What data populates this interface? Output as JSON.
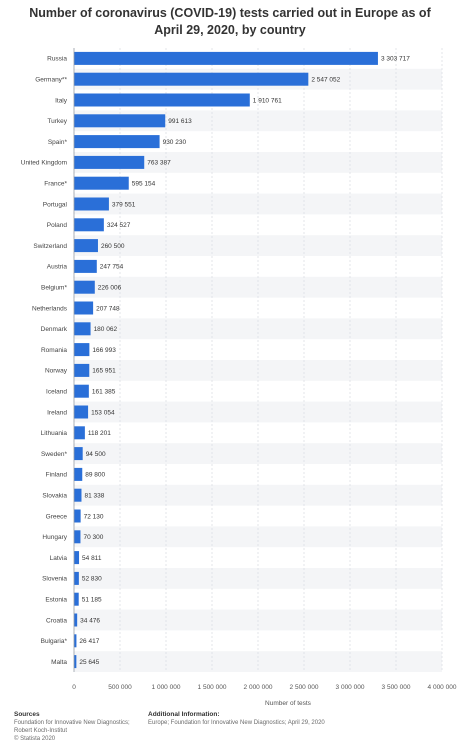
{
  "chart_data": {
    "type": "bar",
    "orientation": "horizontal",
    "title": "Number of coronavirus (COVID-19) tests carried out in Europe as of April 29, 2020, by country",
    "xlabel": "Number of tests",
    "ylabel": "",
    "xlim": [
      0,
      4000000
    ],
    "x_ticks": [
      "0",
      "500 000",
      "1 000 000",
      "1 500 000",
      "2 000 000",
      "2 500 000",
      "3 000 000",
      "3 500 000",
      "4 000 000"
    ],
    "grid": true,
    "legend": "none",
    "bar_color": "#2a6fd8",
    "categories": [
      "Russia",
      "Germany**",
      "Italy",
      "Turkey",
      "Spain*",
      "United Kingdom",
      "France*",
      "Portugal",
      "Poland",
      "Switzerland",
      "Austria",
      "Belgium*",
      "Netherlands",
      "Denmark",
      "Romania",
      "Norway",
      "Iceland",
      "Ireland",
      "Lithuania",
      "Sweden*",
      "Finland",
      "Slovakia",
      "Greece",
      "Hungary",
      "Latvia",
      "Slovenia",
      "Estonia",
      "Croatia",
      "Bulgaria*",
      "Malta"
    ],
    "values": [
      3303717,
      2547052,
      1910761,
      991613,
      930230,
      763387,
      595154,
      379551,
      324527,
      260500,
      247754,
      226006,
      207748,
      180062,
      166993,
      165951,
      161385,
      153054,
      118201,
      94500,
      89800,
      81338,
      72130,
      70300,
      54811,
      52830,
      51185,
      34476,
      26417,
      25645
    ],
    "value_labels": [
      "3 303 717",
      "2 547 052",
      "1 910 761",
      "991 613",
      "930 230",
      "763 387",
      "595 154",
      "379 551",
      "324 527",
      "260 500",
      "247 754",
      "226 006",
      "207 748",
      "180 062",
      "166 993",
      "165 951",
      "161 385",
      "153 054",
      "118 201",
      "94 500",
      "89 800",
      "81 338",
      "72 130",
      "70 300",
      "54 811",
      "52 830",
      "51 185",
      "34 476",
      "26 417",
      "25 645"
    ]
  },
  "footer": {
    "sources_heading": "Sources",
    "sources_text": "Foundation for Innovative New Diagnostics; Robert Koch-Institut",
    "copyright": "© Statista 2020",
    "additional_heading": "Additional Information:",
    "additional_text": "Europe; Foundation for Innovative New Diagnostics; April 29, 2020"
  }
}
